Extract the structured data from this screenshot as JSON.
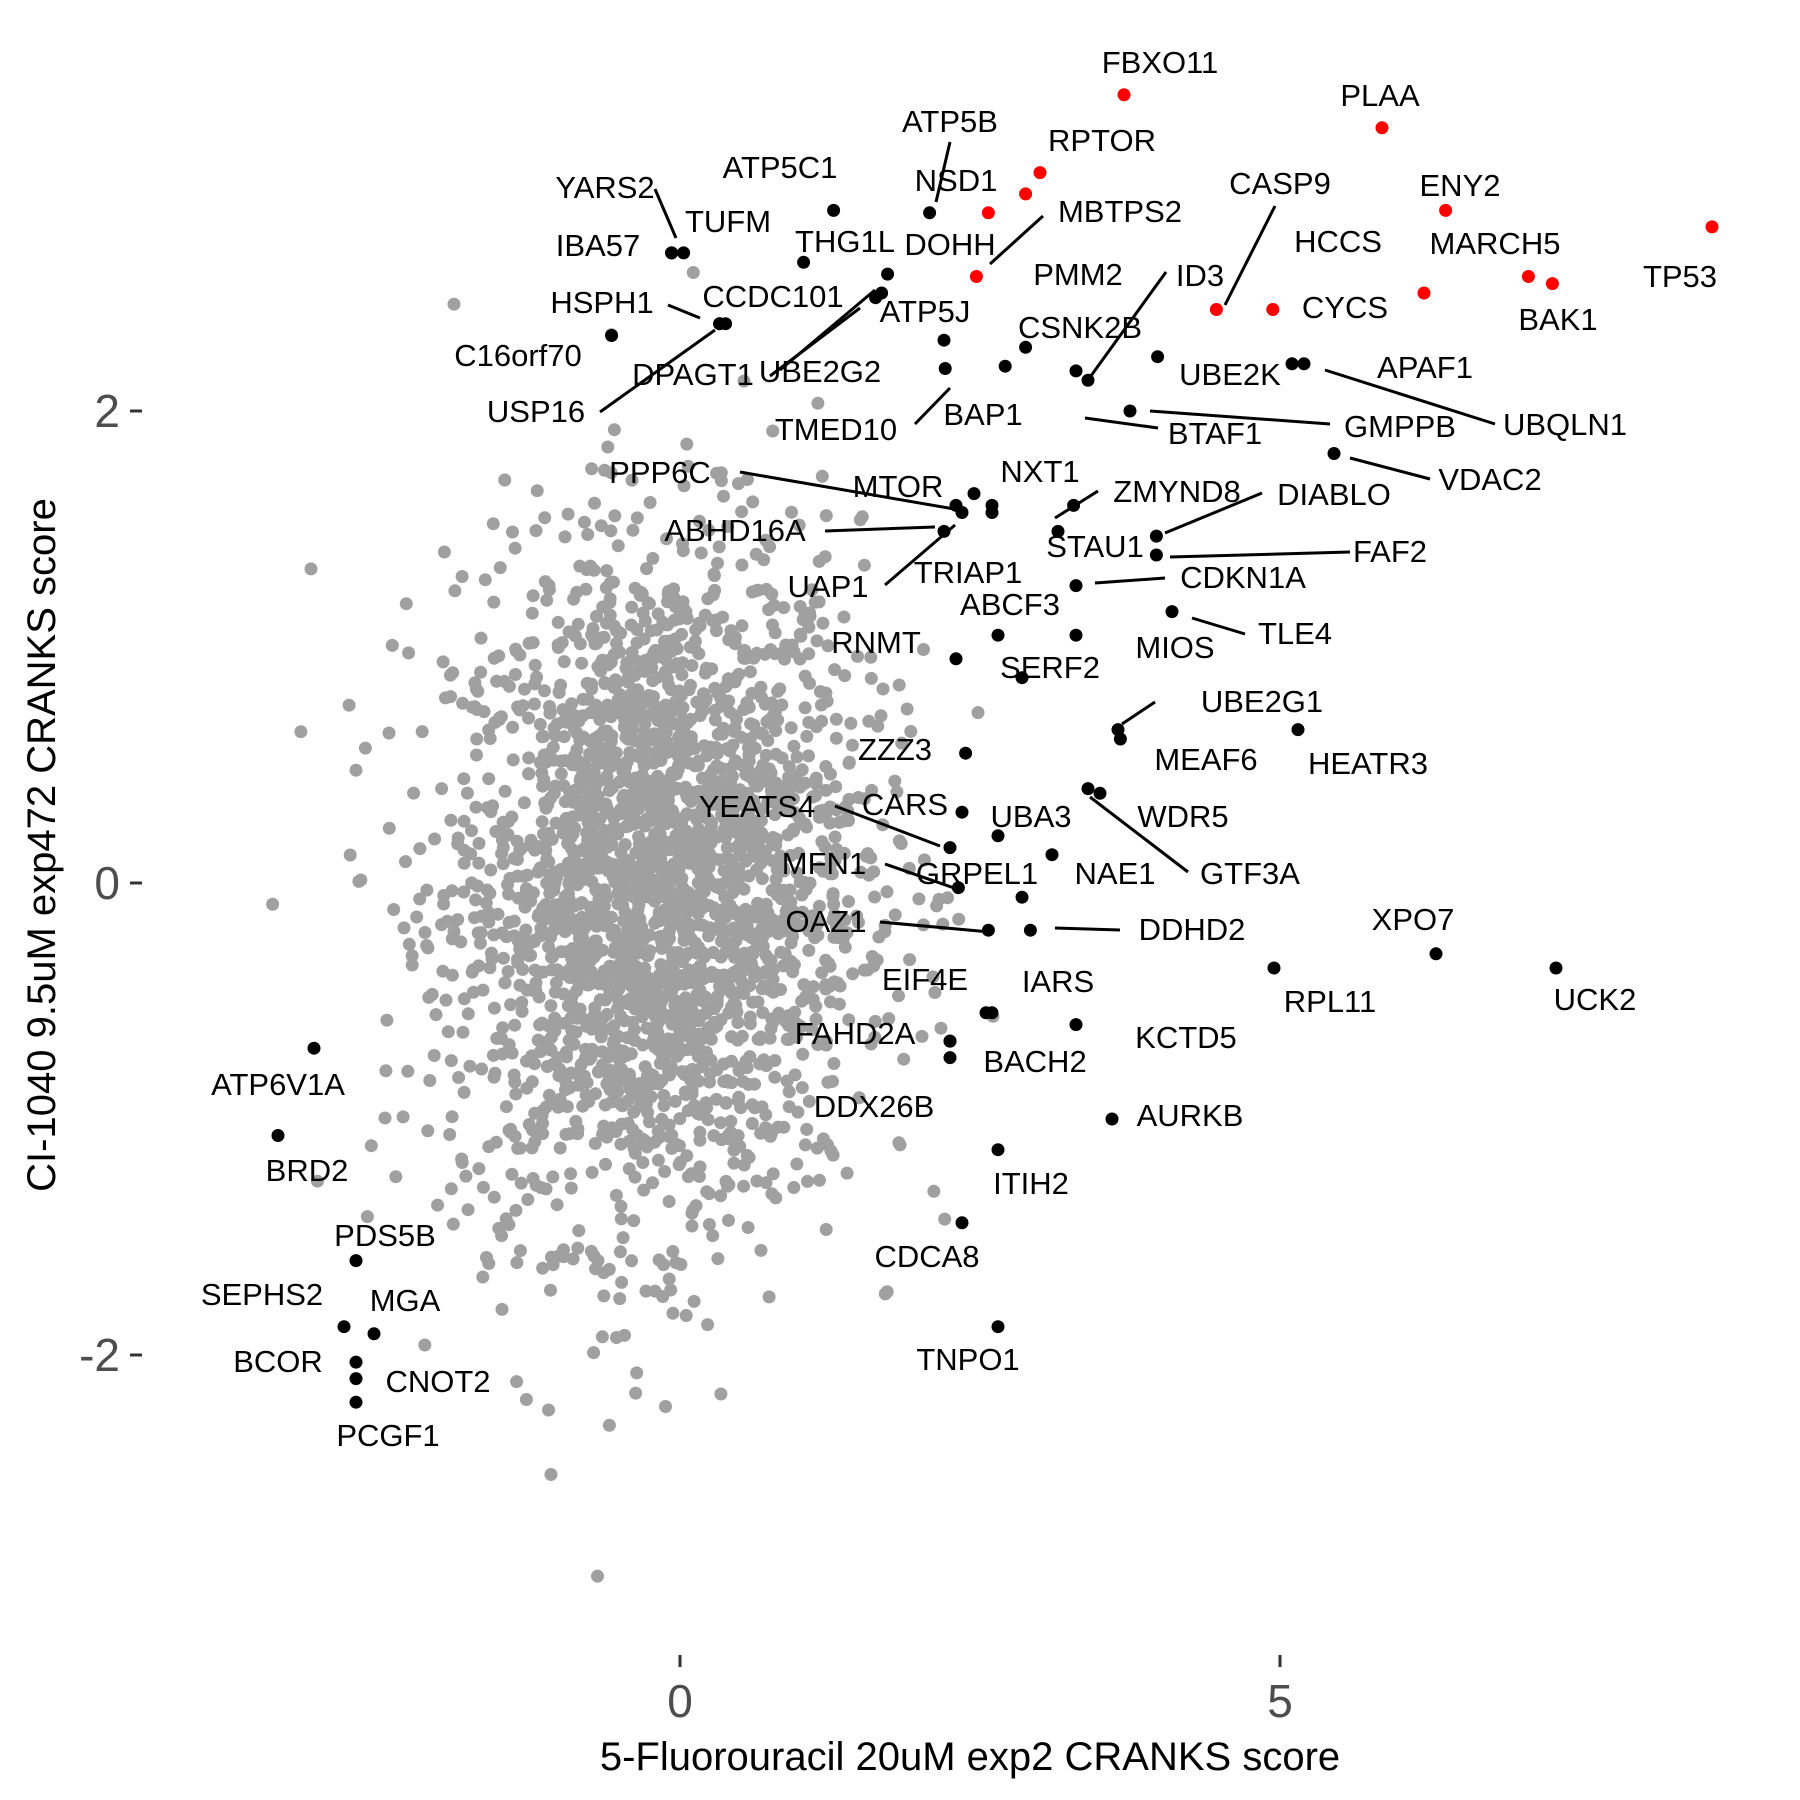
{
  "chart_data": {
    "type": "scatter",
    "xlabel": "5-Fluorouracil 20uM exp2 CRANKS score",
    "ylabel": "CI-1040 9.5uM exp472 CRANKS score",
    "xlim": [
      -5.2,
      8.8
    ],
    "ylim": [
      -2.9,
      3.55
    ],
    "x_ticks": [
      0,
      5
    ],
    "x_tick_labels": [
      "0",
      "5"
    ],
    "y_ticks": [
      -2,
      0,
      2
    ],
    "y_tick_labels": [
      "-2",
      "0",
      "2"
    ],
    "grid": false,
    "legend": "none",
    "colors": {
      "background": "#e9e9e9",
      "highlight": "#ff0000",
      "labeled": "#000000",
      "background_point": "#a0a0a0"
    },
    "background_cloud": {
      "description_free": true,
      "x_center": -0.2,
      "y_center": 0.0,
      "count": 2600
    },
    "highlighted_points": [
      {
        "label": "FBXO11",
        "x": 3.7,
        "y": 3.34
      },
      {
        "label": "PLAA",
        "x": 5.85,
        "y": 3.2
      },
      {
        "label": "RPTOR",
        "x": 3.0,
        "y": 3.01
      },
      {
        "label": "ENY2",
        "x": 6.38,
        "y": 2.85
      },
      {
        "label": "MBTPS2",
        "x": 2.88,
        "y": 2.92
      },
      {
        "label": "TP53",
        "x": 8.6,
        "y": 2.78
      },
      {
        "label": "MARCH5",
        "x": 7.07,
        "y": 2.57
      },
      {
        "label": "BAK1",
        "x": 7.27,
        "y": 2.54
      },
      {
        "label": "DOHH",
        "x": 2.57,
        "y": 2.84
      },
      {
        "label": "NSD1",
        "x": 2.47,
        "y": 2.57
      },
      {
        "label": "CYCS",
        "x": 6.2,
        "y": 2.5
      },
      {
        "label": "CASP9",
        "x": 4.47,
        "y": 2.43
      },
      {
        "label": "HCCS",
        "x": 4.94,
        "y": 2.43
      }
    ],
    "labeled_points": [
      {
        "label": "ATP5B",
        "x": 2.08,
        "y": 2.84
      },
      {
        "label": "ATP5C1",
        "x": 1.28,
        "y": 2.85
      },
      {
        "label": "TUFM",
        "x": 0.03,
        "y": 2.67
      },
      {
        "label": "IBA57",
        "x": -0.07,
        "y": 2.67
      },
      {
        "label": "THG1L",
        "x": 1.03,
        "y": 2.63
      },
      {
        "label": "YARS2",
        "x": -0.07,
        "y": 2.67
      },
      {
        "label": "ATP5J",
        "x": 1.73,
        "y": 2.58
      },
      {
        "label": "CCDC101",
        "x": 1.68,
        "y": 2.5
      },
      {
        "label": "UBE2G2",
        "x": 1.63,
        "y": 2.48
      },
      {
        "label": "HSPH1",
        "x": 0.33,
        "y": 2.37
      },
      {
        "label": "DPAGT1",
        "x": 0.38,
        "y": 2.37
      },
      {
        "label": "C16orf70",
        "x": -0.57,
        "y": 2.32
      },
      {
        "label": "USP16",
        "x": 0.33,
        "y": 2.37
      },
      {
        "label": "PMM2",
        "x": 2.2,
        "y": 2.3
      },
      {
        "label": "CSNK2B",
        "x": 2.88,
        "y": 2.27
      },
      {
        "label": "ID3",
        "x": 3.3,
        "y": 2.17
      },
      {
        "label": "TMED10",
        "x": 2.21,
        "y": 2.18
      },
      {
        "label": "BAP1",
        "x": 2.71,
        "y": 2.19
      },
      {
        "label": "UBE2K",
        "x": 3.98,
        "y": 2.23
      },
      {
        "label": "APAF1",
        "x": 5.2,
        "y": 2.2
      },
      {
        "label": "BTAF1",
        "x": 3.4,
        "y": 2.13
      },
      {
        "label": "GMPPB",
        "x": 3.75,
        "y": 2.0
      },
      {
        "label": "UBQLN1",
        "x": 5.1,
        "y": 2.2
      },
      {
        "label": "VDAC2",
        "x": 5.45,
        "y": 1.82
      },
      {
        "label": "PPP6C",
        "x": 2.6,
        "y": 1.6
      },
      {
        "label": "MTOR",
        "x": 2.45,
        "y": 1.65
      },
      {
        "label": "NXT1",
        "x": 2.3,
        "y": 1.6
      },
      {
        "label": "ZMYND8",
        "x": 3.28,
        "y": 1.6
      },
      {
        "label": "DIABLO",
        "x": 3.97,
        "y": 1.47
      },
      {
        "label": "ABHD16A",
        "x": 2.6,
        "y": 1.57
      },
      {
        "label": "STAU1",
        "x": 3.15,
        "y": 1.49
      },
      {
        "label": "FAF2",
        "x": 3.97,
        "y": 1.39
      },
      {
        "label": "UAP1",
        "x": 2.2,
        "y": 1.49
      },
      {
        "label": "TRIAP1",
        "x": 2.35,
        "y": 1.57
      },
      {
        "label": "CDKN1A",
        "x": 3.3,
        "y": 1.26
      },
      {
        "label": "ABCF3",
        "x": 2.65,
        "y": 1.05
      },
      {
        "label": "TLE4",
        "x": 4.1,
        "y": 1.15
      },
      {
        "label": "MIOS",
        "x": 3.3,
        "y": 1.05
      },
      {
        "label": "RNMT",
        "x": 2.3,
        "y": 0.95
      },
      {
        "label": "SERF2",
        "x": 2.85,
        "y": 0.87
      },
      {
        "label": "UBE2G1",
        "x": 3.65,
        "y": 0.65
      },
      {
        "label": "MEAF6",
        "x": 3.67,
        "y": 0.61
      },
      {
        "label": "HEATR3",
        "x": 5.15,
        "y": 0.65
      },
      {
        "label": "ZZZ3",
        "x": 2.38,
        "y": 0.55
      },
      {
        "label": "YEATS4",
        "x": 2.25,
        "y": 0.15
      },
      {
        "label": "CARS",
        "x": 2.35,
        "y": 0.3
      },
      {
        "label": "UBA3",
        "x": 2.65,
        "y": 0.2
      },
      {
        "label": "WDR5",
        "x": 3.4,
        "y": 0.4
      },
      {
        "label": "GTF3A",
        "x": 3.5,
        "y": 0.38
      },
      {
        "label": "NAE1",
        "x": 3.1,
        "y": 0.12
      },
      {
        "label": "MFN1",
        "x": 2.32,
        "y": -0.02
      },
      {
        "label": "GRPEL1",
        "x": 2.85,
        "y": -0.06
      },
      {
        "label": "OAZ1",
        "x": 2.57,
        "y": -0.2
      },
      {
        "label": "DDHD2",
        "x": 2.92,
        "y": -0.2
      },
      {
        "label": "XPO7",
        "x": 6.3,
        "y": -0.3
      },
      {
        "label": "UCK2",
        "x": 7.3,
        "y": -0.36
      },
      {
        "label": "RPL11",
        "x": 4.95,
        "y": -0.36
      },
      {
        "label": "EIF4E",
        "x": 2.55,
        "y": -0.55
      },
      {
        "label": "IARS",
        "x": 2.6,
        "y": -0.55
      },
      {
        "label": "KCTD5",
        "x": 3.3,
        "y": -0.6
      },
      {
        "label": "FAHD2A",
        "x": 2.25,
        "y": -0.67
      },
      {
        "label": "BACH2",
        "x": 2.25,
        "y": -0.74
      },
      {
        "label": "DDX26B",
        "x": 2.25,
        "y": -0.67
      },
      {
        "label": "AURKB",
        "x": 3.6,
        "y": -1.0
      },
      {
        "label": "ITIH2",
        "x": 2.65,
        "y": -1.13
      },
      {
        "label": "CDCA8",
        "x": 2.35,
        "y": -1.44
      },
      {
        "label": "TNPO1",
        "x": 2.65,
        "y": -1.88
      },
      {
        "label": "ATP6V1A",
        "x": -3.05,
        "y": -0.7
      },
      {
        "label": "BRD2",
        "x": -3.35,
        "y": -1.07
      },
      {
        "label": "PDS5B",
        "x": -2.7,
        "y": -1.6
      },
      {
        "label": "SEPHS2",
        "x": -2.8,
        "y": -1.88
      },
      {
        "label": "MGA",
        "x": -2.55,
        "y": -1.91
      },
      {
        "label": "BCOR",
        "x": -2.7,
        "y": -2.03
      },
      {
        "label": "CNOT2",
        "x": -2.7,
        "y": -2.1
      },
      {
        "label": "PCGF1",
        "x": -2.7,
        "y": -2.2
      }
    ]
  }
}
